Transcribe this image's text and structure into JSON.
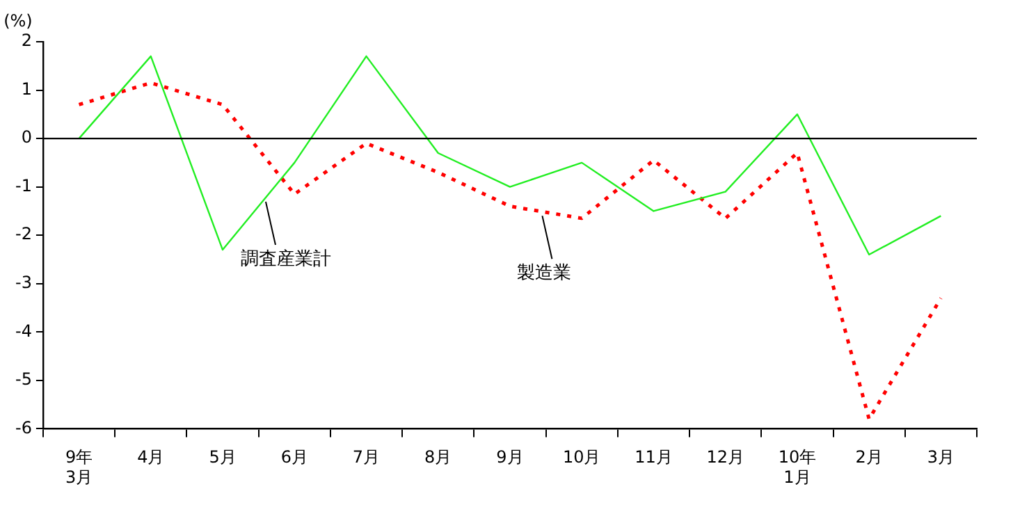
{
  "chart_data": {
    "type": "line",
    "ylabel": "(%)",
    "categories": [
      "9年\n3月",
      "4月",
      "5月",
      "6月",
      "7月",
      "8月",
      "9月",
      "10月",
      "11月",
      "12月",
      "10年\n1月",
      "2月",
      "3月"
    ],
    "series": [
      {
        "name": "調査産業計",
        "color": "#22ee22",
        "line_style": "solid",
        "values": [
          0,
          1.7,
          -2.3,
          -0.5,
          1.7,
          -0.3,
          -1.0,
          -0.5,
          -1.5,
          -1.1,
          0.5,
          -2.4,
          -1.6
        ]
      },
      {
        "name": "製造業",
        "color": "#ff0000",
        "line_style": "dotted",
        "values": [
          0.7,
          1.15,
          0.7,
          -1.15,
          -0.1,
          -0.7,
          -1.4,
          -1.65,
          -0.45,
          -1.65,
          -0.3,
          -5.8,
          -3.3
        ]
      }
    ],
    "ylim": [
      -6,
      2
    ],
    "yticks": [
      -6,
      -5,
      -4,
      -3,
      -2,
      -1,
      0,
      1,
      2
    ],
    "grid": false,
    "legend": false,
    "marker": "none",
    "ref_lines": [
      {
        "axis": "y",
        "value": 0,
        "color": "#000000"
      }
    ]
  }
}
